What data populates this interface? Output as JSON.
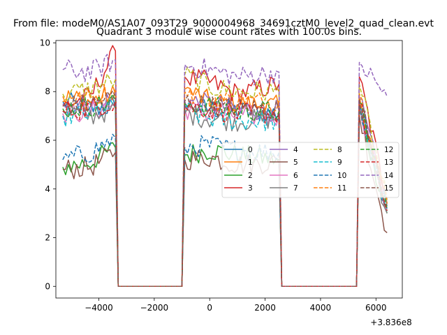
{
  "chart_data": {
    "type": "line",
    "figure_title": "From file: modeM0/AS1A07_093T29_9000004968_34691cztM0_level2_quad_clean.evt",
    "title": "Quadrant 3 module wise count rates with 100.0s bins.",
    "xlabel": "",
    "ylabel": "",
    "x_offset_label": "+3.836e8",
    "xlim": [
      -5550,
      6950
    ],
    "ylim": [
      -0.48,
      10.1
    ],
    "xticks": [
      -4000,
      -2000,
      0,
      2000,
      4000,
      6000
    ],
    "xtick_labels": [
      "−4000",
      "−2000",
      "0",
      "2000",
      "4000",
      "6000"
    ],
    "yticks": [
      0,
      2,
      4,
      6,
      8,
      10
    ],
    "ytick_labels": [
      "0",
      "2",
      "4",
      "6",
      "8",
      "10"
    ],
    "legend": {
      "placement": "center-right",
      "columns": 4
    },
    "segments": [
      {
        "start": -5300,
        "end": -3400,
        "label": "on"
      },
      {
        "start": -3300,
        "end": -1000,
        "label": "off"
      },
      {
        "start": -900,
        "end": 2500,
        "label": "on"
      },
      {
        "start": 2600,
        "end": 5300,
        "label": "off"
      },
      {
        "start": 5400,
        "end": 6400,
        "label": "on"
      }
    ],
    "series": [
      {
        "name": "0",
        "color": "#1f77b4",
        "dash": "solid",
        "level": 7.3,
        "segments": [
          [
            -5300,
            7.6
          ],
          [
            -4300,
            7.3
          ],
          [
            -3400,
            7.4
          ],
          [
            -900,
            7.4
          ],
          [
            0,
            7.3
          ],
          [
            1000,
            7.2
          ],
          [
            2500,
            7.1
          ],
          [
            5400,
            7.4
          ],
          [
            6400,
            3.2
          ]
        ]
      },
      {
        "name": "1",
        "color": "#ff7f0e",
        "dash": "solid",
        "level": 7.6,
        "segments": [
          [
            -5300,
            7.8
          ],
          [
            -4300,
            7.6
          ],
          [
            -3400,
            7.9
          ],
          [
            -900,
            8.1
          ],
          [
            0,
            7.6
          ],
          [
            1000,
            7.5
          ],
          [
            2500,
            7.4
          ],
          [
            5400,
            7.8
          ],
          [
            6400,
            3.4
          ]
        ]
      },
      {
        "name": "2",
        "color": "#2ca02c",
        "dash": "solid",
        "level": 5.1,
        "segments": [
          [
            -5300,
            4.9
          ],
          [
            -4300,
            5.1
          ],
          [
            -3400,
            5.7
          ],
          [
            -900,
            5.4
          ],
          [
            0,
            5.6
          ],
          [
            1000,
            5.4
          ],
          [
            2500,
            5.2
          ],
          [
            5400,
            7.2
          ],
          [
            6400,
            3.0
          ]
        ]
      },
      {
        "name": "3",
        "color": "#d62728",
        "dash": "solid",
        "level": 7.9,
        "segments": [
          [
            -5300,
            7.4
          ],
          [
            -4300,
            7.8
          ],
          [
            -3400,
            9.67
          ],
          [
            -900,
            8.6
          ],
          [
            0,
            8.4
          ],
          [
            1000,
            7.9
          ],
          [
            2500,
            8.3
          ],
          [
            5400,
            8.6
          ],
          [
            6400,
            3.6
          ]
        ]
      },
      {
        "name": "4",
        "color": "#9467bd",
        "dash": "solid",
        "level": 7.5,
        "segments": [
          [
            -5300,
            7.5
          ],
          [
            -4300,
            7.4
          ],
          [
            -3400,
            7.7
          ],
          [
            -900,
            7.6
          ],
          [
            0,
            7.5
          ],
          [
            1000,
            7.3
          ],
          [
            2500,
            7.2
          ],
          [
            5400,
            7.7
          ],
          [
            6400,
            3.3
          ]
        ]
      },
      {
        "name": "5",
        "color": "#8c564b",
        "dash": "solid",
        "level": 4.9,
        "segments": [
          [
            -5300,
            4.8
          ],
          [
            -4300,
            4.9
          ],
          [
            -3400,
            5.5
          ],
          [
            -900,
            5.2
          ],
          [
            0,
            5.3
          ],
          [
            1000,
            5.0
          ],
          [
            2500,
            5.1
          ],
          [
            5400,
            7.0
          ],
          [
            6400,
            2.2
          ]
        ]
      },
      {
        "name": "6",
        "color": "#e377c2",
        "dash": "solid",
        "level": 7.2,
        "segments": [
          [
            -5300,
            7.1
          ],
          [
            -4300,
            7.2
          ],
          [
            -3400,
            7.5
          ],
          [
            -900,
            7.3
          ],
          [
            0,
            7.1
          ],
          [
            1000,
            7.0
          ],
          [
            2500,
            7.0
          ],
          [
            5400,
            7.5
          ],
          [
            6400,
            3.1
          ]
        ]
      },
      {
        "name": "7",
        "color": "#7f7f7f",
        "dash": "solid",
        "level": 7.0,
        "segments": [
          [
            -5300,
            7.2
          ],
          [
            -4300,
            7.0
          ],
          [
            -3400,
            7.3
          ],
          [
            -900,
            7.1
          ],
          [
            0,
            6.9
          ],
          [
            1000,
            6.8
          ],
          [
            2500,
            6.9
          ],
          [
            5400,
            7.3
          ],
          [
            6400,
            3.0
          ]
        ]
      },
      {
        "name": "8",
        "color": "#bcbd22",
        "dash": "dashed",
        "level": 8.1,
        "segments": [
          [
            -5300,
            7.9
          ],
          [
            -4300,
            8.1
          ],
          [
            -3400,
            8.5
          ],
          [
            -900,
            8.7
          ],
          [
            0,
            8.2
          ],
          [
            1000,
            8.0
          ],
          [
            2500,
            8.0
          ],
          [
            5400,
            8.3
          ],
          [
            6400,
            3.5
          ]
        ]
      },
      {
        "name": "9",
        "color": "#17becf",
        "dash": "dashed",
        "level": 7.1,
        "segments": [
          [
            -5300,
            7.0
          ],
          [
            -4300,
            7.1
          ],
          [
            -3400,
            7.4
          ],
          [
            -900,
            7.2
          ],
          [
            0,
            6.9
          ],
          [
            1000,
            6.8
          ],
          [
            2500,
            6.8
          ],
          [
            5400,
            7.4
          ],
          [
            6400,
            3.1
          ]
        ]
      },
      {
        "name": "10",
        "color": "#1f77b4",
        "dash": "dashed",
        "level": 5.5,
        "segments": [
          [
            -5300,
            5.2
          ],
          [
            -4300,
            5.5
          ],
          [
            -3400,
            6.1
          ],
          [
            -900,
            5.7
          ],
          [
            0,
            5.8
          ],
          [
            1000,
            5.6
          ],
          [
            2500,
            5.5
          ],
          [
            5400,
            7.6
          ],
          [
            6400,
            3.2
          ]
        ]
      },
      {
        "name": "11",
        "color": "#ff7f0e",
        "dash": "dashed",
        "level": 7.7,
        "segments": [
          [
            -5300,
            7.6
          ],
          [
            -4300,
            7.7
          ],
          [
            -3400,
            8.1
          ],
          [
            -900,
            8.0
          ],
          [
            0,
            7.7
          ],
          [
            1000,
            7.6
          ],
          [
            2500,
            7.6
          ],
          [
            5400,
            7.9
          ],
          [
            6400,
            3.4
          ]
        ]
      },
      {
        "name": "12",
        "color": "#2ca02c",
        "dash": "dashed",
        "level": 7.4,
        "segments": [
          [
            -5300,
            7.3
          ],
          [
            -4300,
            7.4
          ],
          [
            -3400,
            7.6
          ],
          [
            -900,
            7.5
          ],
          [
            0,
            7.4
          ],
          [
            1000,
            7.2
          ],
          [
            2500,
            7.2
          ],
          [
            5400,
            7.6
          ],
          [
            6400,
            3.2
          ]
        ]
      },
      {
        "name": "13",
        "color": "#d62728",
        "dash": "dashed",
        "level": 7.3,
        "segments": [
          [
            -5300,
            7.2
          ],
          [
            -4300,
            7.3
          ],
          [
            -3400,
            7.6
          ],
          [
            -900,
            7.4
          ],
          [
            0,
            7.3
          ],
          [
            1000,
            7.1
          ],
          [
            2500,
            7.1
          ],
          [
            5400,
            7.5
          ],
          [
            6400,
            3.1
          ]
        ]
      },
      {
        "name": "14",
        "color": "#9467bd",
        "dash": "dashed",
        "level": 8.8,
        "segments": [
          [
            -5300,
            8.9
          ],
          [
            -4300,
            8.8
          ],
          [
            -3400,
            9.3
          ],
          [
            -900,
            9.1
          ],
          [
            0,
            8.9
          ],
          [
            1000,
            8.6
          ],
          [
            2500,
            8.8
          ],
          [
            5400,
            9.2
          ],
          [
            6400,
            7.8
          ]
        ]
      },
      {
        "name": "15",
        "color": "#8c564b",
        "dash": "dashed",
        "level": 7.5,
        "segments": [
          [
            -5300,
            7.4
          ],
          [
            -4300,
            7.5
          ],
          [
            -3400,
            7.8
          ],
          [
            -900,
            7.6
          ],
          [
            0,
            7.4
          ],
          [
            1000,
            7.3
          ],
          [
            2500,
            7.3
          ],
          [
            5400,
            7.7
          ],
          [
            6400,
            3.3
          ]
        ]
      }
    ]
  }
}
